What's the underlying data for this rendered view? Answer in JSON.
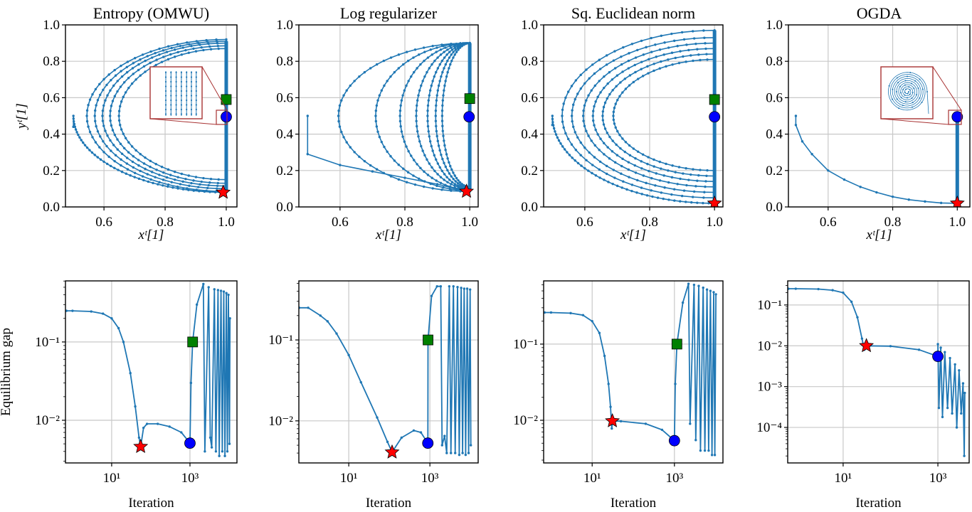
{
  "colors": {
    "line": "#1f77b4",
    "star": "#ff0000",
    "square": "#008000",
    "circle": "#0000ff",
    "inset": "#a83232",
    "grid": "#c8c8c8"
  },
  "chart_data": [
    {
      "type": "line",
      "title": "Entropy (OMWU)",
      "xlabel": "xᵗ[1]",
      "ylabel": "yᵗ[1]",
      "xlim": [
        0.474,
        1.035
      ],
      "ylim": [
        0,
        1
      ],
      "grid": true,
      "xticks": [
        0.6,
        0.8,
        1.0
      ],
      "xtick_labels": [
        "0.6",
        "0.8",
        "1.0"
      ],
      "yticks": [
        0,
        0.2,
        0.4,
        0.6,
        0.8,
        1.0
      ],
      "ytick_labels": [
        "0.0",
        "0.2",
        "0.4",
        "0.6",
        "0.8",
        "1.0"
      ],
      "start": [
        [
          0.5,
          0.5
        ],
        [
          0.5,
          0.44
        ]
      ],
      "start_arc": [
        0.5,
        0.08
      ],
      "loops": [
        [
          0.544,
          0.92,
          0.085
        ],
        [
          0.57,
          0.91,
          0.1
        ],
        [
          0.595,
          0.9,
          0.115
        ],
        [
          0.62,
          0.885,
          0.13
        ],
        [
          0.649,
          0.87,
          0.15
        ]
      ],
      "limit_segment": [
        [
          1.0,
          0.08
        ],
        [
          1.0,
          0.91
        ]
      ],
      "markers": {
        "star": [
          0.99,
          0.08
        ],
        "square": [
          1.0,
          0.59
        ],
        "circle": [
          1.0,
          0.495
        ]
      },
      "inset": "vertical-lines"
    },
    {
      "type": "line",
      "title": "Log regularizer",
      "xlabel": "xᵗ[1]",
      "ylabel": "",
      "xlim": [
        0.473,
        1.026
      ],
      "ylim": [
        0,
        1
      ],
      "grid": true,
      "xticks": [
        0.6,
        0.8,
        1.0
      ],
      "xtick_labels": [
        "0.6",
        "0.8",
        "1.0"
      ],
      "yticks": [
        0,
        0.2,
        0.4,
        0.6,
        0.8,
        1.0
      ],
      "ytick_labels": [
        "0.0",
        "0.2",
        "0.4",
        "0.6",
        "0.8",
        "1.0"
      ],
      "start": [
        [
          0.5,
          0.5
        ],
        [
          0.5,
          0.29
        ],
        [
          0.6,
          0.23
        ],
        [
          0.7,
          0.195
        ],
        [
          0.8,
          0.16
        ],
        [
          0.9,
          0.125
        ],
        [
          0.99,
          0.085
        ]
      ],
      "loops": [
        [
          0.595,
          0.9,
          0.085
        ],
        [
          0.71,
          0.9,
          0.09
        ],
        [
          0.785,
          0.9,
          0.095
        ],
        [
          0.835,
          0.9,
          0.1
        ],
        [
          0.87,
          0.9,
          0.1
        ],
        [
          0.895,
          0.9,
          0.105
        ],
        [
          0.915,
          0.9,
          0.11
        ]
      ],
      "limit_segment": [
        [
          1.0,
          0.1
        ],
        [
          1.0,
          0.9
        ]
      ],
      "markers": {
        "star": [
          0.99,
          0.085
        ],
        "square": [
          1.0,
          0.595
        ],
        "circle": [
          0.998,
          0.495
        ]
      }
    },
    {
      "type": "line",
      "title": "Sq. Euclidean norm",
      "xlabel": "xᵗ[1]",
      "ylabel": "",
      "xlim": [
        0.473,
        1.026
      ],
      "ylim": [
        0,
        1
      ],
      "grid": true,
      "xticks": [
        0.6,
        0.8,
        1.0
      ],
      "xtick_labels": [
        "0.6",
        "0.8",
        "1.0"
      ],
      "yticks": [
        0,
        0.2,
        0.4,
        0.6,
        0.8,
        1.0
      ],
      "ytick_labels": [
        "0.0",
        "0.2",
        "0.4",
        "0.6",
        "0.8",
        "1.0"
      ],
      "start": [
        [
          0.5,
          0.5
        ],
        [
          0.5,
          0.45
        ]
      ],
      "start_arc": [
        0.5,
        0.02
      ],
      "loops": [
        [
          0.53,
          0.97,
          0.05
        ],
        [
          0.56,
          0.93,
          0.08
        ],
        [
          0.595,
          0.9,
          0.11
        ],
        [
          0.625,
          0.87,
          0.14
        ],
        [
          0.655,
          0.84,
          0.17
        ],
        [
          0.688,
          0.81,
          0.2
        ]
      ],
      "limit_segment": [
        [
          1.0,
          0.02
        ],
        [
          1.0,
          0.97
        ]
      ],
      "markers": {
        "star": [
          1.0,
          0.02
        ],
        "square": [
          1.0,
          0.59
        ],
        "circle": [
          1.0,
          0.495
        ]
      }
    },
    {
      "type": "line",
      "title": "OGDA",
      "xlabel": "xᵗ[1]",
      "ylabel": "",
      "xlim": [
        0.477,
        1.039
      ],
      "ylim": [
        0,
        1
      ],
      "grid": true,
      "xticks": [
        0.6,
        0.8,
        1.0
      ],
      "xtick_labels": [
        "0.6",
        "0.8",
        "1.0"
      ],
      "yticks": [
        0,
        0.2,
        0.4,
        0.6,
        0.8,
        1.0
      ],
      "ytick_labels": [
        "0.0",
        "0.2",
        "0.4",
        "0.6",
        "0.8",
        "1.0"
      ],
      "start": [
        [
          0.5,
          0.5
        ],
        [
          0.5,
          0.45
        ],
        [
          0.52,
          0.36
        ],
        [
          0.55,
          0.29
        ],
        [
          0.6,
          0.2
        ],
        [
          0.65,
          0.15
        ],
        [
          0.7,
          0.11
        ],
        [
          0.75,
          0.08
        ],
        [
          0.8,
          0.056
        ],
        [
          0.85,
          0.04
        ],
        [
          0.9,
          0.03
        ],
        [
          0.95,
          0.022
        ],
        [
          1.0,
          0.02
        ]
      ],
      "loops": [],
      "limit_segment": [
        [
          1.0,
          0.02
        ],
        [
          1.0,
          0.5
        ]
      ],
      "markers": {
        "star": [
          1.0,
          0.02
        ],
        "circle": [
          1.0,
          0.495
        ]
      },
      "inset": "spiral"
    },
    {
      "type": "line",
      "xscale": "log",
      "yscale": "log",
      "xlabel": "Iteration",
      "ylabel": "Equilibrium gap",
      "xlim_log10": [
        -0.18,
        4.2
      ],
      "ylim_log10": [
        -2.545,
        -0.22
      ],
      "grid": true,
      "xticks": [
        10,
        1000
      ],
      "xtick_labels": [
        "10¹",
        "10³"
      ],
      "yticks": [
        0.1,
        0.01
      ],
      "ytick_labels": [
        "10⁻¹",
        "10⁻²"
      ],
      "series": [
        [
          0.7,
          0.25
        ],
        [
          1,
          0.25
        ],
        [
          3,
          0.245
        ],
        [
          6,
          0.23
        ],
        [
          10,
          0.2
        ],
        [
          15,
          0.15
        ],
        [
          20,
          0.1
        ],
        [
          30,
          0.04
        ],
        [
          40,
          0.015
        ],
        [
          50,
          0.006
        ],
        [
          55,
          0.0046
        ],
        [
          65,
          0.008
        ],
        [
          80,
          0.009
        ],
        [
          150,
          0.009
        ],
        [
          300,
          0.0083
        ],
        [
          600,
          0.007
        ],
        [
          1000,
          0.0051
        ],
        [
          1060,
          0.03
        ],
        [
          1170,
          0.1
        ],
        [
          1500,
          0.3
        ],
        [
          2200,
          0.55
        ],
        [
          2400,
          0.004
        ],
        [
          3000,
          0.5
        ],
        [
          3300,
          0.006
        ],
        [
          3600,
          0.0045
        ],
        [
          4200,
          0.47
        ],
        [
          4600,
          0.004
        ],
        [
          5200,
          0.46
        ],
        [
          5600,
          0.0035
        ],
        [
          6200,
          0.45
        ],
        [
          6700,
          0.004
        ],
        [
          7300,
          0.44
        ],
        [
          7800,
          0.0035
        ],
        [
          8500,
          0.42
        ],
        [
          9000,
          0.004
        ],
        [
          9600,
          0.4
        ],
        [
          10200,
          0.005
        ],
        [
          10500,
          0.2
        ]
      ],
      "markers": {
        "star": [
          55,
          0.0046
        ],
        "square": [
          1170,
          0.1
        ],
        "circle": [
          1000,
          0.0051
        ]
      }
    },
    {
      "type": "line",
      "xscale": "log",
      "yscale": "log",
      "xlabel": "Iteration",
      "ylabel": "",
      "xlim_log10": [
        -0.23,
        4.19
      ],
      "ylim_log10": [
        -2.52,
        -0.27
      ],
      "grid": true,
      "xticks": [
        10,
        1000
      ],
      "xtick_labels": [
        "10¹",
        "10³"
      ],
      "yticks": [
        0.1,
        0.01
      ],
      "ytick_labels": [
        "10⁻¹",
        "10⁻²"
      ],
      "series": [
        [
          0.6,
          0.25
        ],
        [
          1,
          0.25
        ],
        [
          2,
          0.2
        ],
        [
          3,
          0.17
        ],
        [
          5,
          0.12
        ],
        [
          10,
          0.065
        ],
        [
          20,
          0.03
        ],
        [
          50,
          0.011
        ],
        [
          90,
          0.0055
        ],
        [
          117,
          0.0041
        ],
        [
          200,
          0.0062
        ],
        [
          400,
          0.0076
        ],
        [
          600,
          0.0072
        ],
        [
          890,
          0.0053
        ],
        [
          900,
          0.1
        ],
        [
          1100,
          0.35
        ],
        [
          1500,
          0.46
        ],
        [
          1850,
          0.46
        ],
        [
          2000,
          0.005
        ],
        [
          2300,
          0.0065
        ],
        [
          2600,
          0.004
        ],
        [
          3000,
          0.46
        ],
        [
          3300,
          0.004
        ],
        [
          3800,
          0.46
        ],
        [
          4200,
          0.004
        ],
        [
          4800,
          0.45
        ],
        [
          5300,
          0.0038
        ],
        [
          5900,
          0.44
        ],
        [
          6400,
          0.004
        ],
        [
          7000,
          0.43
        ],
        [
          7600,
          0.0038
        ],
        [
          8300,
          0.43
        ],
        [
          9000,
          0.004
        ],
        [
          9800,
          0.42
        ],
        [
          10200,
          0.005
        ]
      ],
      "markers": {
        "star": [
          117,
          0.0041
        ],
        "square": [
          900,
          0.1
        ],
        "circle": [
          890,
          0.0053
        ]
      }
    },
    {
      "type": "line",
      "xscale": "log",
      "yscale": "log",
      "xlabel": "Iteration",
      "ylabel": "",
      "xlim_log10": [
        -0.18,
        4.18
      ],
      "ylim_log10": [
        -2.56,
        -0.17
      ],
      "grid": true,
      "xticks": [
        10,
        1000
      ],
      "xtick_labels": [
        "10¹",
        "10³"
      ],
      "yticks": [
        0.1,
        0.01
      ],
      "ytick_labels": [
        "10⁻¹",
        "10⁻²"
      ],
      "series": [
        [
          0.7,
          0.26
        ],
        [
          1,
          0.26
        ],
        [
          3,
          0.255
        ],
        [
          6,
          0.24
        ],
        [
          10,
          0.2
        ],
        [
          15,
          0.14
        ],
        [
          20,
          0.07
        ],
        [
          25,
          0.03
        ],
        [
          28,
          0.015
        ],
        [
          30,
          0.0078
        ],
        [
          31,
          0.0098
        ],
        [
          50,
          0.0097
        ],
        [
          200,
          0.009
        ],
        [
          500,
          0.0075
        ],
        [
          1000,
          0.0054
        ],
        [
          1050,
          0.03
        ],
        [
          1150,
          0.1
        ],
        [
          1600,
          0.35
        ],
        [
          2200,
          0.62
        ],
        [
          2400,
          0.009
        ],
        [
          3000,
          0.6
        ],
        [
          3300,
          0.0055
        ],
        [
          3900,
          0.58
        ],
        [
          4300,
          0.004
        ],
        [
          5000,
          0.55
        ],
        [
          5500,
          0.004
        ],
        [
          6200,
          0.52
        ],
        [
          6800,
          0.004
        ],
        [
          7500,
          0.5
        ],
        [
          8200,
          0.0035
        ],
        [
          9000,
          0.48
        ],
        [
          9600,
          0.0035
        ],
        [
          10200,
          0.45
        ]
      ],
      "markers": {
        "star": [
          31,
          0.0098
        ],
        "square": [
          1150,
          0.1
        ],
        "circle": [
          1000,
          0.0054
        ]
      }
    },
    {
      "type": "line",
      "xscale": "log",
      "yscale": "log",
      "xlabel": "Iteration",
      "ylabel": "",
      "xlim_log10": [
        -0.17,
        3.66
      ],
      "ylim_log10": [
        -4.87,
        -0.41
      ],
      "grid": true,
      "xticks": [
        10,
        1000
      ],
      "xtick_labels": [
        "10¹",
        "10³"
      ],
      "yticks": [
        0.1,
        0.01,
        0.001,
        0.0001
      ],
      "ytick_labels": [
        "10⁻¹",
        "10⁻²",
        "10⁻³",
        "10⁻⁴"
      ],
      "series": [
        [
          0.7,
          0.25
        ],
        [
          1,
          0.25
        ],
        [
          3,
          0.245
        ],
        [
          6,
          0.23
        ],
        [
          10,
          0.2
        ],
        [
          15,
          0.12
        ],
        [
          20,
          0.05
        ],
        [
          25,
          0.015
        ],
        [
          28,
          0.008
        ],
        [
          31,
          0.01
        ],
        [
          100,
          0.0098
        ],
        [
          400,
          0.008
        ],
        [
          1000,
          0.0055
        ],
        [
          1000,
          0.011
        ],
        [
          1050,
          0.0003
        ],
        [
          1150,
          0.009
        ],
        [
          1250,
          0.00018
        ],
        [
          1400,
          0.007
        ],
        [
          1600,
          0.0003
        ],
        [
          1800,
          0.005
        ],
        [
          2000,
          0.00022
        ],
        [
          2300,
          0.0035
        ],
        [
          2500,
          0.0001
        ],
        [
          2800,
          0.0025
        ],
        [
          3100,
          0.00022
        ],
        [
          3400,
          0.0012
        ],
        [
          3600,
          2e-05
        ],
        [
          3700,
          0.0007
        ]
      ],
      "markers": {
        "star": [
          31,
          0.01
        ],
        "circle": [
          1000,
          0.0055
        ]
      }
    }
  ]
}
